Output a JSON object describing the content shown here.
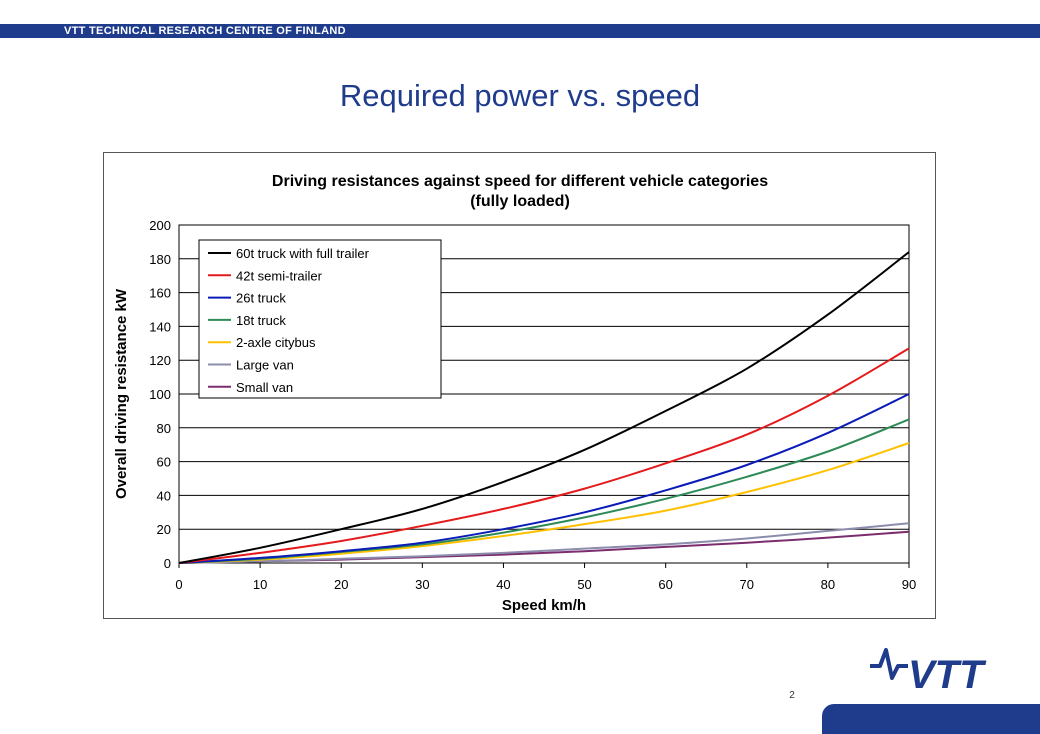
{
  "header": {
    "org": "VTT TECHNICAL RESEARCH CENTRE OF FINLAND"
  },
  "slide": {
    "title": "Required power vs. speed",
    "page_number": "2"
  },
  "logo": {
    "text": "VTT"
  },
  "colors": {
    "brand": "#1f3c8c",
    "background": "#ffffff"
  },
  "chart_data": {
    "type": "line",
    "title_lines": [
      "Driving resistances against speed for different vehicle categories",
      "(fully loaded)"
    ],
    "xlabel": "Speed km/h",
    "ylabel": "Overall driving resistance kW",
    "xlim": [
      0,
      90
    ],
    "ylim": [
      0,
      200
    ],
    "x_ticks": [
      0,
      10,
      20,
      30,
      40,
      50,
      60,
      70,
      80,
      90
    ],
    "y_ticks": [
      0,
      20,
      40,
      60,
      80,
      100,
      120,
      140,
      160,
      180,
      200
    ],
    "grid": "horizontal",
    "legend_position": "top-left",
    "x": [
      0,
      10,
      20,
      30,
      40,
      50,
      60,
      70,
      80,
      90
    ],
    "series": [
      {
        "name": "60t truck with full trailer",
        "color": "#000000",
        "values": [
          0,
          9,
          20,
          32,
          48,
          67,
          90,
          115,
          147,
          184
        ]
      },
      {
        "name": "42t semi-trailer",
        "color": "#e41a1c",
        "values": [
          0,
          6,
          13,
          22,
          32,
          44,
          59,
          76,
          99,
          127
        ]
      },
      {
        "name": "26t truck",
        "color": "#0a1bb8",
        "values": [
          0,
          3,
          7,
          12,
          20,
          30,
          43,
          58,
          77,
          100
        ]
      },
      {
        "name": "18t truck",
        "color": "#2e8b57",
        "values": [
          0,
          2.5,
          6.5,
          11,
          18,
          27,
          38,
          51,
          66,
          85
        ]
      },
      {
        "name": "2-axle citybus",
        "color": "#ffc000",
        "values": [
          0,
          2,
          5.5,
          10,
          16,
          23,
          31,
          42,
          55,
          71
        ]
      },
      {
        "name": "Large van",
        "color": "#8c8cac",
        "values": [
          0,
          1,
          2.5,
          4,
          6,
          8.5,
          11,
          14.5,
          19,
          23.5
        ]
      },
      {
        "name": "Small van",
        "color": "#7b2d6e",
        "values": [
          0,
          1,
          2,
          3.5,
          5,
          7,
          9.5,
          12,
          15,
          18.5
        ]
      }
    ]
  }
}
